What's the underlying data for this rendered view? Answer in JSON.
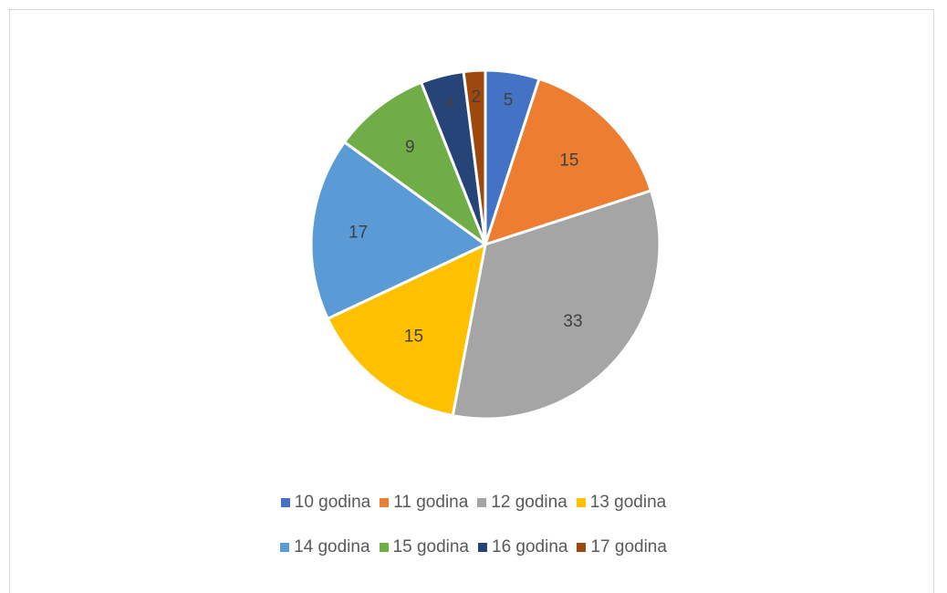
{
  "chart_data": {
    "type": "pie",
    "title": "",
    "categories": [
      "10 godina",
      "11 godina",
      "12 godina",
      "13 godina",
      "14 godina",
      "15 godina",
      "16 godina",
      "17 godina"
    ],
    "values": [
      5,
      15,
      33,
      15,
      17,
      9,
      4,
      2
    ],
    "data_labels": [
      "5",
      "15",
      "33",
      "15",
      "17",
      "9",
      "4",
      "2"
    ],
    "colors": [
      "#4472c4",
      "#ed7d31",
      "#a5a5a5",
      "#ffc000",
      "#5b9bd5",
      "#70ad47",
      "#264478",
      "#9e480e"
    ],
    "legend_position": "bottom",
    "start_angle": "12 o'clock",
    "direction": "clockwise"
  }
}
